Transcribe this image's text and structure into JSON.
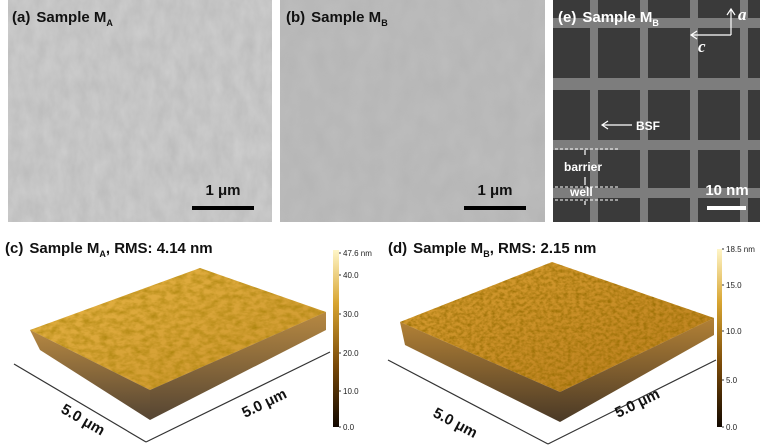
{
  "panels": [
    {
      "label": "(a)",
      "title": "Sample M",
      "subscript": "A",
      "scale_bar": "1 μm"
    },
    {
      "label": "(b)",
      "title": "Sample M",
      "subscript": "B",
      "scale_bar": "1 μm"
    },
    {
      "label": "(e)",
      "title": "Sample M",
      "subscript": "B",
      "scale_bar": "10 nm",
      "axis_a": "a",
      "axis_c": "c",
      "annotations": [
        "BSF",
        "barrier",
        "well"
      ]
    },
    {
      "label": "(c)",
      "title": "Sample M",
      "subscript": "A",
      "suffix": ", RMS: 4.14 nm",
      "colorbar": [
        "47.6 nm",
        "40.0",
        "30.0",
        "20.0",
        "10.0",
        "0.0"
      ],
      "axis_labels": [
        "5.0 μm",
        "5.0 μm"
      ]
    },
    {
      "label": "(d)",
      "title": "Sample M",
      "subscript": "B",
      "suffix": ", RMS: 2.15 nm",
      "colorbar": [
        "18.5 nm",
        "15.0",
        "10.0",
        "5.0",
        "0.0"
      ],
      "axis_labels": [
        "5.0 μm",
        "5.0 μm"
      ]
    }
  ]
}
